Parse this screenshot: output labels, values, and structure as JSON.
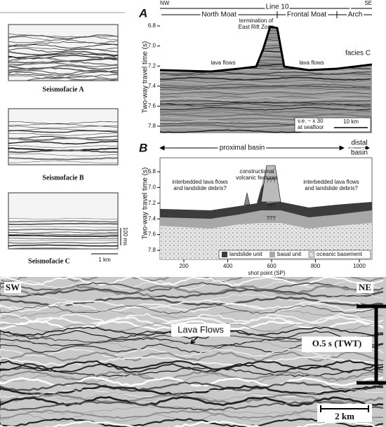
{
  "left_panels": [
    {
      "label": "Seismofacie A"
    },
    {
      "label": "Seismofacie B"
    },
    {
      "label": "Seismofacie C"
    }
  ],
  "left_scale": {
    "vertical": "100 ms",
    "horizontal": "1 km"
  },
  "panel_a": {
    "letter": "A",
    "header": {
      "left": "NW",
      "center": "Line 10",
      "right": "SE",
      "zones": [
        "North Moat",
        "Frontal Moat",
        "Arch"
      ]
    },
    "y_axis_label": "Two-way travel time (s)",
    "yticks": [
      "6.8",
      "7.0",
      "7.2",
      "7.4",
      "7.6",
      "7.8"
    ],
    "annotations": {
      "rift": [
        "termination of",
        "East Rift Zone"
      ],
      "lava_left": "lava flows",
      "lava_right": "lava flows",
      "facies": "facies C"
    },
    "scale_note": [
      "v.e. ~ x 30",
      "at seafloor"
    ],
    "scale_bar": "10 km"
  },
  "panel_b": {
    "letter": "B",
    "header": {
      "left": "proximal basin",
      "right": [
        "distal",
        "basin"
      ]
    },
    "y_axis_label": "Two-way travel time (s)",
    "yticks": [
      "6.8",
      "7.0",
      "7.2",
      "7.4",
      "7.6",
      "7.8"
    ],
    "xticks": [
      "200",
      "400",
      "600",
      "800",
      "1000"
    ],
    "x_axis_label": "shot point (SP)",
    "annotations": {
      "volcanic": [
        "constructional",
        "volcanic features"
      ],
      "left": [
        "interbedded lava flows",
        "and landslide debris?"
      ],
      "right": [
        "interbedded lava flows",
        "and landslide debris?"
      ],
      "unknown": [
        "???",
        "???",
        "???"
      ]
    },
    "legend": [
      "landslide unit",
      "basal unit",
      "oceanic basement"
    ]
  },
  "bottom_panel": {
    "left": "SW",
    "right": "NE",
    "lava": "Lava Flows",
    "vertical_scale": "O.5 s (TWT)",
    "horizontal_scale": "2 km"
  }
}
